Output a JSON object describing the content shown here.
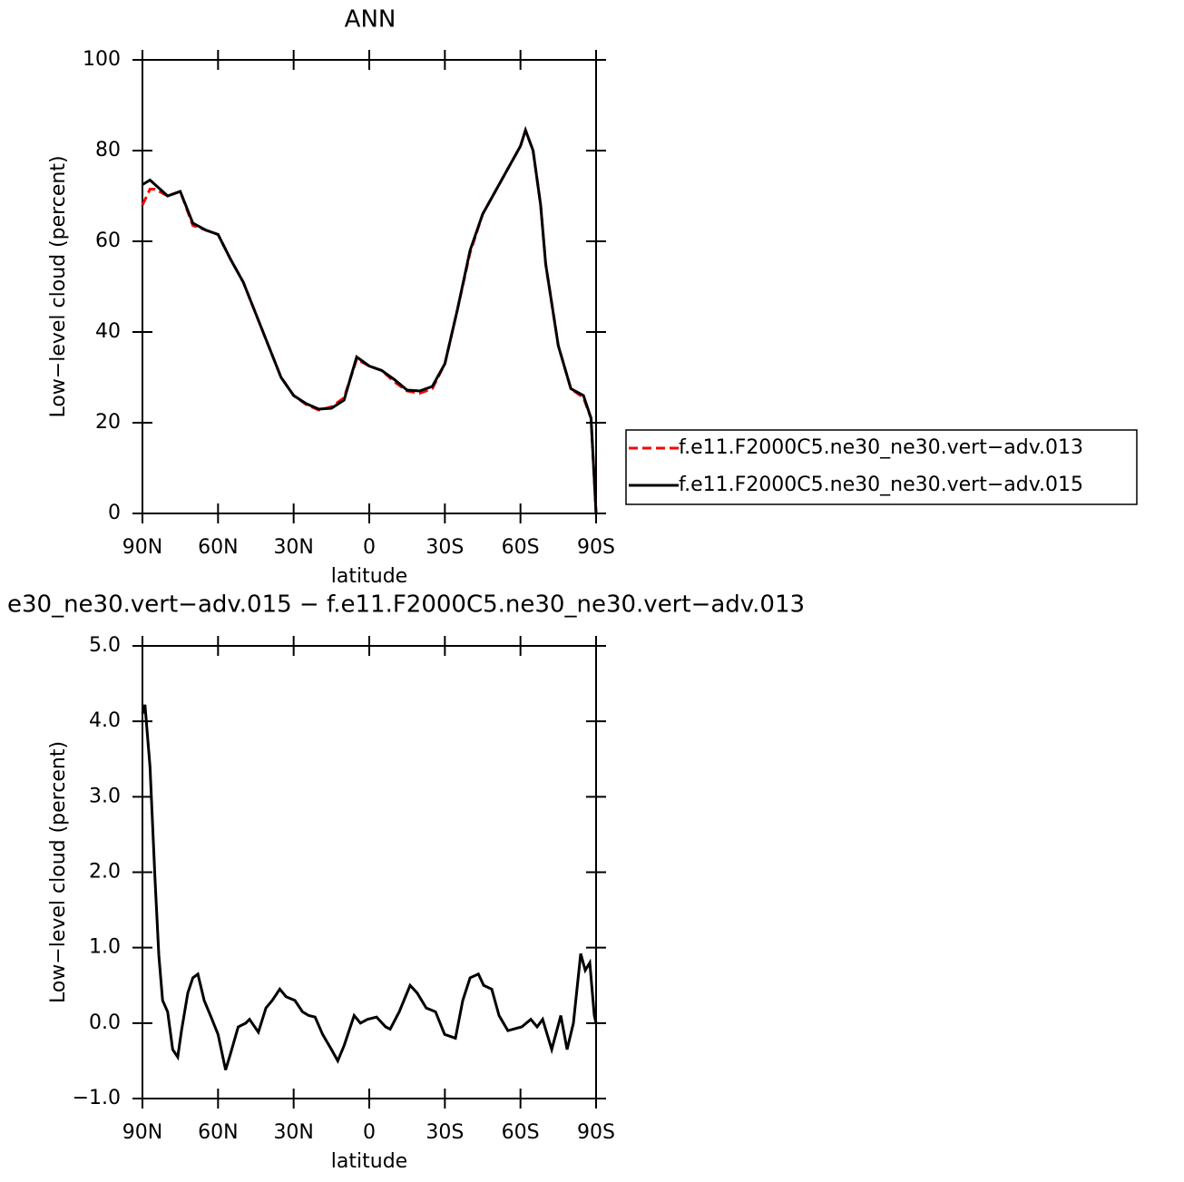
{
  "chart_data": [
    {
      "type": "line",
      "title": "ANN",
      "xlabel": "latitude",
      "ylabel": "Low−level cloud (percent)",
      "x": [
        90,
        87,
        85,
        80,
        75,
        70,
        65,
        60,
        55,
        50,
        45,
        40,
        35,
        30,
        25,
        20,
        15,
        10,
        5,
        0,
        -5,
        -10,
        -15,
        -20,
        -25,
        -30,
        -35,
        -40,
        -45,
        -50,
        -55,
        -60,
        -62,
        -65,
        -68,
        -70,
        -75,
        -80,
        -85,
        -88,
        -90
      ],
      "series": [
        {
          "name": "f.e11.F2000C5.ne30_ne30.vert−adv.013",
          "color": "#ff0000",
          "linestyle": "dashed",
          "values": [
            68,
            71.5,
            71.5,
            70,
            71,
            63.5,
            62.5,
            61.5,
            56,
            51,
            44,
            37,
            30,
            26,
            24,
            22.8,
            23.5,
            25.5,
            34,
            32.5,
            31.5,
            29,
            27,
            26.5,
            27.5,
            33,
            45,
            57.5,
            66,
            71,
            76,
            81,
            84.5,
            80,
            68,
            55,
            37,
            27.5,
            25.5,
            21,
            0
          ]
        },
        {
          "name": "f.e11.F2000C5.ne30_ne30.vert−adv.015",
          "color": "#000000",
          "linestyle": "solid",
          "values": [
            72.5,
            73.5,
            72.5,
            70,
            71,
            64,
            62.5,
            61.5,
            56,
            51,
            44,
            37,
            30,
            26,
            24.2,
            23,
            23.2,
            25,
            34.5,
            32.5,
            31.5,
            29.5,
            27.2,
            27,
            28,
            33,
            45,
            58,
            66,
            71,
            76,
            81,
            84.5,
            80,
            68,
            55,
            37,
            27.5,
            26,
            21,
            0
          ]
        }
      ],
      "xlim": [
        90,
        -90
      ],
      "xticks": [
        {
          "value": 90,
          "label": "90N"
        },
        {
          "value": 60,
          "label": "60N"
        },
        {
          "value": 30,
          "label": "30N"
        },
        0,
        {
          "value": -30,
          "label": "30S"
        },
        {
          "value": -60,
          "label": "60S"
        },
        {
          "value": -90,
          "label": "90S"
        }
      ],
      "ylim": [
        0,
        100
      ],
      "yticks": [
        0,
        20,
        40,
        60,
        80,
        100
      ],
      "legend": "right"
    },
    {
      "type": "line",
      "title": "e30_ne30.vert−adv.015 − f.e11.F2000C5.ne30_ne30.vert−adv.013",
      "xlabel": "latitude",
      "ylabel": "Low−level cloud (percent)",
      "x": [
        90,
        89,
        87,
        85,
        83.5,
        82,
        80,
        78,
        76,
        74.5,
        72,
        70,
        68,
        65.5,
        63,
        60,
        57,
        55,
        52,
        49,
        47.5,
        44,
        41,
        38.5,
        35.5,
        33,
        29.5,
        26.5,
        24,
        21.5,
        18.5,
        15,
        12.5,
        10,
        6,
        3.5,
        0.7,
        -2.9,
        -6.5,
        -8.3,
        -11.9,
        -16.2,
        -19,
        -22.6,
        -26.3,
        -29.9,
        -34.2,
        -37.1,
        -40,
        -43.3,
        -45.4,
        -48.6,
        -51.5,
        -55,
        -60.5,
        -64.1,
        -66.6,
        -68.8,
        -72.4,
        -76,
        -78.5,
        -81,
        -83.9,
        -85.7,
        -87.5,
        -89.3,
        -90
      ],
      "series": [
        {
          "color": "#000000",
          "linestyle": "solid",
          "values": [
            4.1,
            4.22,
            3.4,
            1.9,
            0.9,
            0.3,
            0.15,
            -0.35,
            -0.45,
            -0.1,
            0.4,
            0.6,
            0.65,
            0.3,
            0.1,
            -0.15,
            -0.62,
            -0.4,
            -0.05,
            0,
            0.05,
            -0.12,
            0.2,
            0.3,
            0.45,
            0.35,
            0.3,
            0.15,
            0.1,
            0.08,
            -0.15,
            -0.35,
            -0.5,
            -0.3,
            0.1,
            0,
            0.05,
            0.08,
            -0.05,
            -0.08,
            0.15,
            0.5,
            0.4,
            0.2,
            0.15,
            -0.15,
            -0.2,
            0.3,
            0.6,
            0.65,
            0.5,
            0.45,
            0.1,
            -0.1,
            -0.05,
            0.05,
            -0.05,
            0.05,
            -0.35,
            0.1,
            -0.35,
            0,
            0.92,
            0.7,
            0.8,
            0.1,
            0
          ]
        }
      ],
      "xlim": [
        90,
        -90
      ],
      "xticks": [
        {
          "value": 90,
          "label": "90N"
        },
        {
          "value": 60,
          "label": "60N"
        },
        {
          "value": 30,
          "label": "30N"
        },
        0,
        {
          "value": -30,
          "label": "30S"
        },
        {
          "value": -60,
          "label": "60S"
        },
        {
          "value": -90,
          "label": "90S"
        }
      ],
      "ylim": [
        -1,
        5
      ],
      "yticks": [
        {
          "value": -1,
          "label": "−1.0"
        },
        {
          "value": 0,
          "label": "0.0"
        },
        {
          "value": 1,
          "label": "1.0"
        },
        {
          "value": 2,
          "label": "2.0"
        },
        {
          "value": 3,
          "label": "3.0"
        },
        {
          "value": 4,
          "label": "4.0"
        },
        {
          "value": 5,
          "label": "5.0"
        }
      ]
    }
  ]
}
